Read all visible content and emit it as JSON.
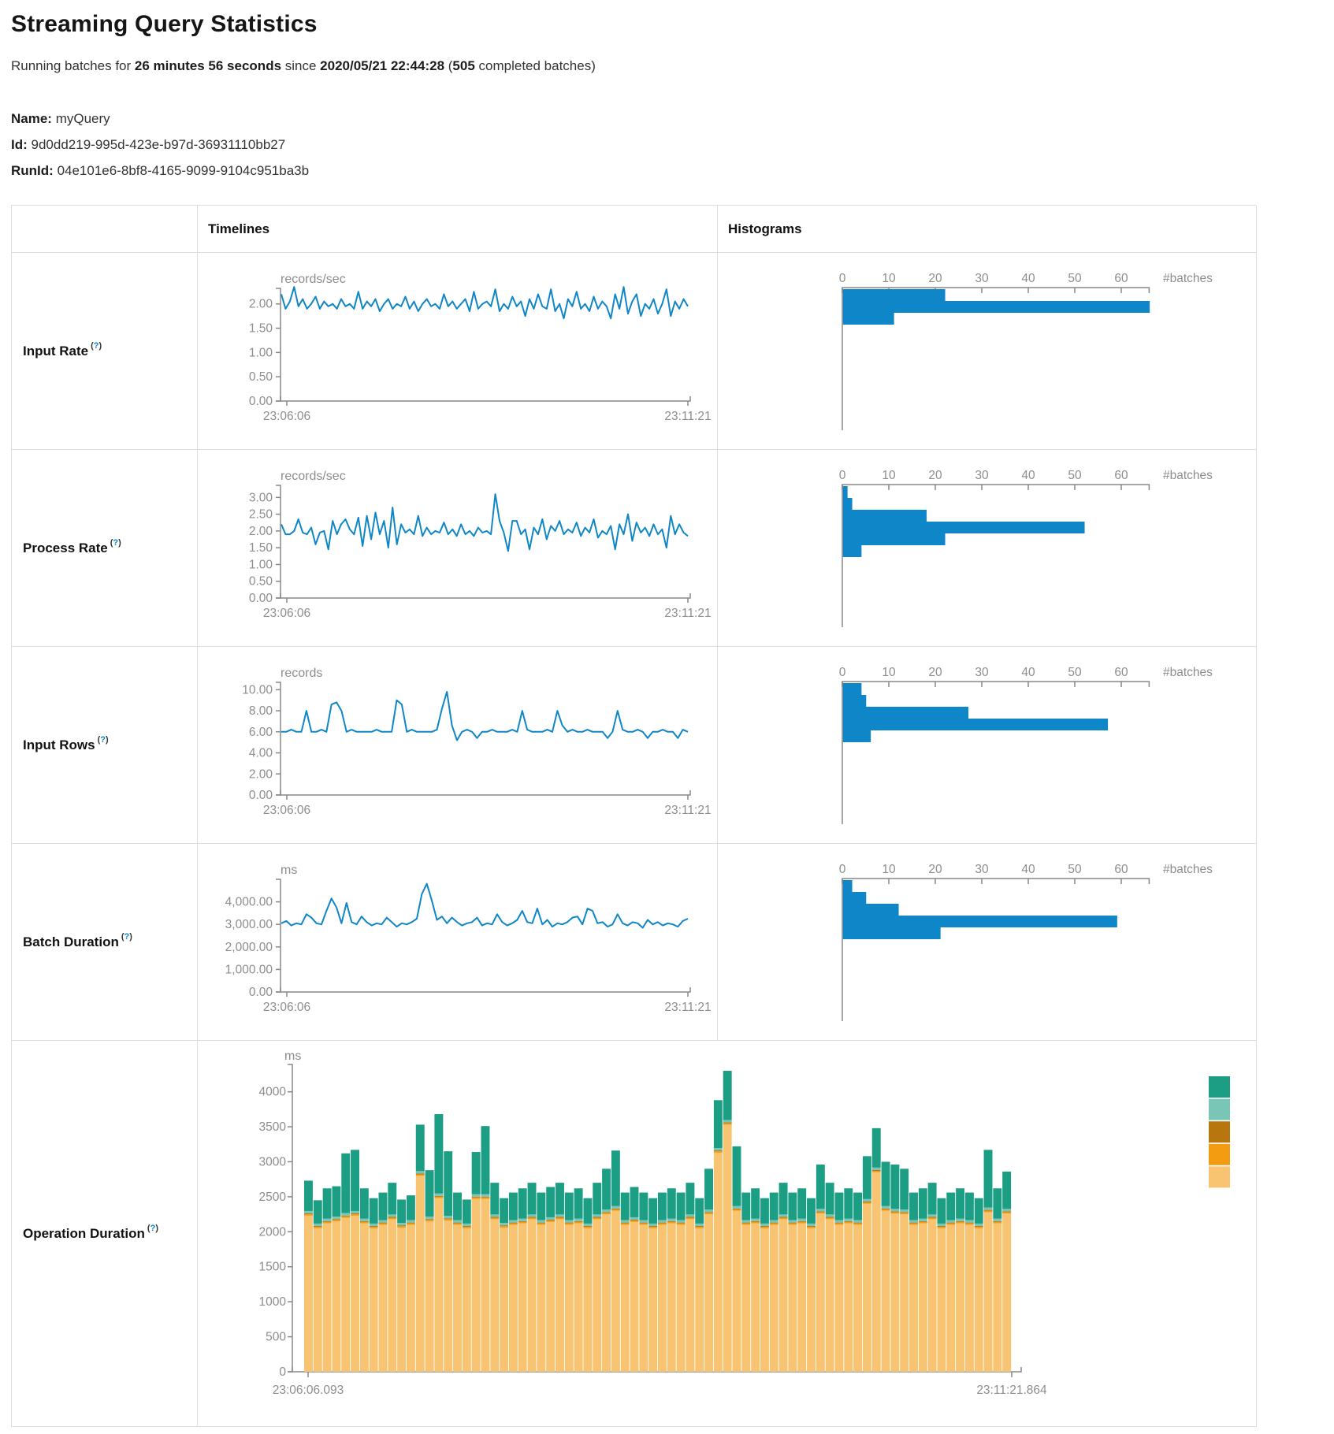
{
  "page": {
    "title": "Streaming Query Statistics",
    "subtitle": {
      "prefix": "Running batches for ",
      "duration": "26 minutes 56 seconds",
      "middle": " since ",
      "start_time": "2020/05/21 22:44:28",
      "paren_open": " (",
      "completed_batches": "505",
      "suffix": " completed batches)"
    },
    "meta": {
      "name_label": "Name:",
      "name_value": "myQuery",
      "id_label": "Id:",
      "id_value": "9d0dd219-995d-423e-b97d-36931110bb27",
      "runid_label": "RunId:",
      "runid_value": "04e101e6-8bf8-4165-9099-9104c951ba3b"
    }
  },
  "table": {
    "col_timelines": "Timelines",
    "col_histograms": "Histograms",
    "tooltip": {
      "open": "(",
      "q": "?",
      "close": ")"
    },
    "rows": [
      {
        "label": "Input Rate"
      },
      {
        "label": "Process Rate"
      },
      {
        "label": "Input Rows"
      },
      {
        "label": "Batch Duration"
      },
      {
        "label": "Operation Duration"
      }
    ]
  },
  "colors": {
    "line_blue": "#0e86c8",
    "hist_blue": "#0e86c8",
    "axis": "#888888",
    "tick_text": "#8d8d8d",
    "teal": "#1b9e83",
    "light_teal": "#79c6b7",
    "dark_gold": "#b8770e",
    "orange": "#f39c12",
    "tan": "#f8c471",
    "help_link": "#0088cc"
  },
  "chart_data": [
    {
      "name": "input-rate-timeline",
      "type": "line",
      "unit": "records/sec",
      "x_start": "23:06:06",
      "x_end": "23:11:21",
      "ytick_values": [
        0,
        0.5,
        1,
        1.5,
        2
      ],
      "ytick_labels": [
        "0.00",
        "0.50",
        "1.00",
        "1.50",
        "2.00"
      ],
      "ymax": 2.32,
      "values": [
        2.2,
        1.9,
        2.05,
        2.35,
        1.95,
        2.1,
        1.9,
        2.0,
        2.15,
        1.9,
        2.05,
        1.95,
        2.0,
        1.9,
        2.1,
        1.95,
        2.0,
        1.9,
        2.25,
        1.9,
        2.05,
        1.95,
        2.1,
        1.85,
        2.0,
        2.1,
        1.9,
        2.0,
        1.95,
        2.15,
        1.9,
        2.05,
        1.85,
        2.0,
        2.1,
        1.95,
        2.0,
        1.9,
        2.2,
        1.95,
        2.05,
        1.9,
        2.0,
        2.1,
        1.85,
        2.25,
        1.9,
        2.0,
        2.05,
        1.95,
        2.3,
        1.85,
        2.0,
        1.9,
        2.15,
        1.95,
        2.05,
        1.75,
        2.1,
        1.9,
        2.2,
        1.95,
        1.9,
        2.3,
        1.85,
        2.0,
        1.7,
        2.1,
        1.95,
        2.25,
        1.9,
        2.0,
        1.85,
        2.15,
        1.9,
        2.05,
        1.95,
        1.7,
        2.2,
        1.9,
        2.35,
        1.8,
        2.05,
        2.2,
        1.75,
        2.0,
        1.9,
        2.1,
        1.8,
        2.0,
        2.3,
        1.75,
        2.05,
        1.9,
        2.1,
        1.95
      ]
    },
    {
      "name": "input-rate-histogram",
      "type": "hist",
      "xtick_values": [
        0,
        10,
        20,
        30,
        40,
        50,
        60
      ],
      "xtick_labels": [
        "0",
        "10",
        "20",
        "30",
        "40",
        "50",
        "60"
      ],
      "axis_max": 66,
      "xlabel": "#batches",
      "values": [
        22,
        66,
        11
      ]
    },
    {
      "name": "process-rate-timeline",
      "type": "line",
      "unit": "records/sec",
      "x_start": "23:06:06",
      "x_end": "23:11:21",
      "ytick_values": [
        0,
        0.5,
        1,
        1.5,
        2,
        2.5,
        3
      ],
      "ytick_labels": [
        "0.00",
        "0.50",
        "1.00",
        "1.50",
        "2.00",
        "2.50",
        "3.00"
      ],
      "ymax": 3.36,
      "values": [
        2.2,
        1.9,
        1.9,
        2.0,
        2.35,
        1.95,
        1.9,
        2.1,
        1.6,
        1.95,
        2.0,
        1.45,
        2.3,
        1.9,
        2.2,
        2.35,
        2.05,
        1.9,
        2.4,
        1.55,
        2.45,
        1.75,
        2.55,
        1.9,
        2.3,
        1.5,
        2.7,
        1.6,
        2.2,
        1.95,
        2.05,
        1.9,
        2.45,
        1.85,
        2.1,
        1.9,
        2.0,
        1.95,
        2.25,
        1.9,
        2.05,
        1.85,
        2.2,
        1.9,
        2.0,
        1.85,
        2.1,
        1.95,
        2.0,
        1.9,
        3.1,
        2.3,
        1.95,
        1.4,
        2.3,
        2.3,
        1.9,
        2.05,
        1.45,
        2.1,
        1.9,
        2.35,
        1.75,
        2.15,
        2.0,
        2.3,
        1.9,
        2.05,
        1.95,
        2.25,
        1.85,
        2.1,
        1.95,
        2.35,
        1.8,
        2.0,
        1.9,
        2.15,
        1.45,
        2.2,
        1.9,
        2.5,
        1.7,
        2.25,
        1.95,
        2.1,
        1.85,
        2.2,
        1.9,
        2.05,
        1.5,
        2.45,
        1.9,
        2.2,
        1.95,
        1.85
      ]
    },
    {
      "name": "process-rate-histogram",
      "type": "hist",
      "xtick_values": [
        0,
        10,
        20,
        30,
        40,
        50,
        60
      ],
      "xtick_labels": [
        "0",
        "10",
        "20",
        "30",
        "40",
        "50",
        "60"
      ],
      "axis_max": 66,
      "xlabel": "#batches",
      "values": [
        1,
        2,
        18,
        52,
        22,
        4
      ]
    },
    {
      "name": "input-rows-timeline",
      "type": "line",
      "unit": "records",
      "x_start": "23:06:06",
      "x_end": "23:11:21",
      "ytick_values": [
        0,
        2,
        4,
        6,
        8,
        10
      ],
      "ytick_labels": [
        "0.00",
        "2.00",
        "4.00",
        "6.00",
        "8.00",
        "10.00"
      ],
      "ymax": 10.7,
      "values": [
        6,
        6,
        6.2,
        6,
        6,
        8,
        6,
        6,
        6.2,
        6,
        8.6,
        8.8,
        8,
        6,
        6.2,
        6,
        6,
        6,
        6,
        6.2,
        6,
        6,
        6,
        9,
        8.6,
        6,
        6.2,
        6,
        6,
        6,
        6,
        6.2,
        8.2,
        9.8,
        6.6,
        5.2,
        6,
        6.2,
        6,
        5.4,
        6,
        6,
        6.2,
        6,
        6,
        6,
        6.2,
        6,
        8,
        6.2,
        6,
        6,
        6,
        6.2,
        6,
        8,
        6.6,
        6,
        6.2,
        6,
        6,
        6.2,
        6,
        6,
        6,
        5.4,
        6,
        8,
        6.2,
        6,
        6,
        6.2,
        6,
        5.4,
        6,
        6,
        6.2,
        6,
        6,
        5.4,
        6.2,
        6
      ]
    },
    {
      "name": "input-rows-histogram",
      "type": "hist",
      "xtick_values": [
        0,
        10,
        20,
        30,
        40,
        50,
        60
      ],
      "xtick_labels": [
        "0",
        "10",
        "20",
        "30",
        "40",
        "50",
        "60"
      ],
      "axis_max": 66,
      "xlabel": "#batches",
      "values": [
        4,
        5,
        27,
        57,
        6
      ]
    },
    {
      "name": "batch-duration-timeline",
      "type": "line",
      "unit": "ms",
      "x_start": "23:06:06",
      "x_end": "23:11:21",
      "ytick_values": [
        0,
        1000,
        2000,
        3000,
        4000
      ],
      "ytick_labels": [
        "0.00",
        "1,000.00",
        "2,000.00",
        "3,000.00",
        "4,000.00"
      ],
      "ymax": 5000,
      "values": [
        3050,
        3150,
        2950,
        3050,
        3000,
        3450,
        3300,
        3050,
        3000,
        3600,
        4150,
        3750,
        3050,
        3950,
        3100,
        3000,
        3350,
        3100,
        2950,
        3050,
        3000,
        3300,
        3100,
        2900,
        3050,
        3000,
        3100,
        3250,
        4350,
        4800,
        4050,
        3200,
        3350,
        3050,
        3300,
        3100,
        2950,
        3050,
        3100,
        3300,
        2950,
        3050,
        3000,
        3450,
        3100,
        2950,
        3050,
        3200,
        3600,
        3100,
        3050,
        3700,
        3000,
        3200,
        2900,
        3050,
        3000,
        3100,
        3300,
        3350,
        3000,
        3700,
        3600,
        3050,
        3100,
        2900,
        3000,
        3450,
        3050,
        2950,
        3100,
        3050,
        2850,
        3200,
        3000,
        3100,
        2950,
        3050,
        3000,
        2900,
        3150,
        3250
      ]
    },
    {
      "name": "batch-duration-histogram",
      "type": "hist",
      "xtick_values": [
        0,
        10,
        20,
        30,
        40,
        50,
        60
      ],
      "xtick_labels": [
        "0",
        "10",
        "20",
        "30",
        "40",
        "50",
        "60"
      ],
      "axis_max": 66,
      "xlabel": "#batches",
      "values": [
        2,
        5,
        12,
        59,
        21
      ]
    },
    {
      "name": "operation-duration-stacked",
      "type": "stacked",
      "unit": "ms",
      "x_start": "23:06:06.093",
      "x_end": "23:11:21.864",
      "ytick_values": [
        0,
        500,
        1000,
        1500,
        2000,
        2500,
        3000,
        3500,
        4000
      ],
      "ytick_labels": [
        "0",
        "500",
        "1000",
        "1500",
        "2000",
        "2500",
        "3000",
        "3500",
        "4000"
      ],
      "ymax": 4390,
      "legend_swatches": [
        "#1b9e83",
        "#79c6b7",
        "#b8770e",
        "#f39c12",
        "#f8c471"
      ],
      "series": [
        {
          "name": "bottom-tan",
          "color": "#f8c471",
          "values": [
            2230,
            2050,
            2120,
            2150,
            2200,
            2230,
            2120,
            2050,
            2100,
            2180,
            2060,
            2100,
            2800,
            2150,
            2480,
            2160,
            2100,
            2050,
            2470,
            2470,
            2180,
            2060,
            2100,
            2120,
            2180,
            2100,
            2140,
            2180,
            2100,
            2120,
            2050,
            2180,
            2250,
            2300,
            2100,
            2140,
            2100,
            2050,
            2100,
            2120,
            2100,
            2180,
            2050,
            2250,
            3130,
            3530,
            2300,
            2100,
            2120,
            2050,
            2100,
            2180,
            2100,
            2120,
            2050,
            2260,
            2180,
            2100,
            2120,
            2100,
            2400,
            2850,
            2300,
            2260,
            2250,
            2100,
            2120,
            2180,
            2050,
            2100,
            2120,
            2100,
            2050,
            2280,
            2120,
            2260
          ]
        },
        {
          "name": "orange-band",
          "color": "#f39c12",
          "constant": 20
        },
        {
          "name": "dark-gold-band",
          "color": "#b8770e",
          "constant": 12
        },
        {
          "name": "light-teal-band",
          "color": "#79c6b7",
          "constant": 35
        },
        {
          "name": "top-teal",
          "color": "#1b9e83",
          "values": [
            433,
            333,
            433,
            433,
            853,
            873,
            433,
            363,
            393,
            453,
            333,
            353,
            663,
            663,
            1133,
            923,
            393,
            343,
            603,
            973,
            453,
            353,
            393,
            433,
            453,
            393,
            433,
            453,
            393,
            433,
            363,
            453,
            583,
            793,
            393,
            433,
            393,
            363,
            393,
            433,
            393,
            453,
            363,
            583,
            683,
            703,
            853,
            393,
            433,
            363,
            393,
            453,
            393,
            433,
            363,
            633,
            453,
            393,
            433,
            393,
            613,
            563,
            633,
            633,
            583,
            393,
            433,
            453,
            363,
            393,
            433,
            393,
            363,
            823,
            433,
            533
          ]
        }
      ]
    }
  ]
}
